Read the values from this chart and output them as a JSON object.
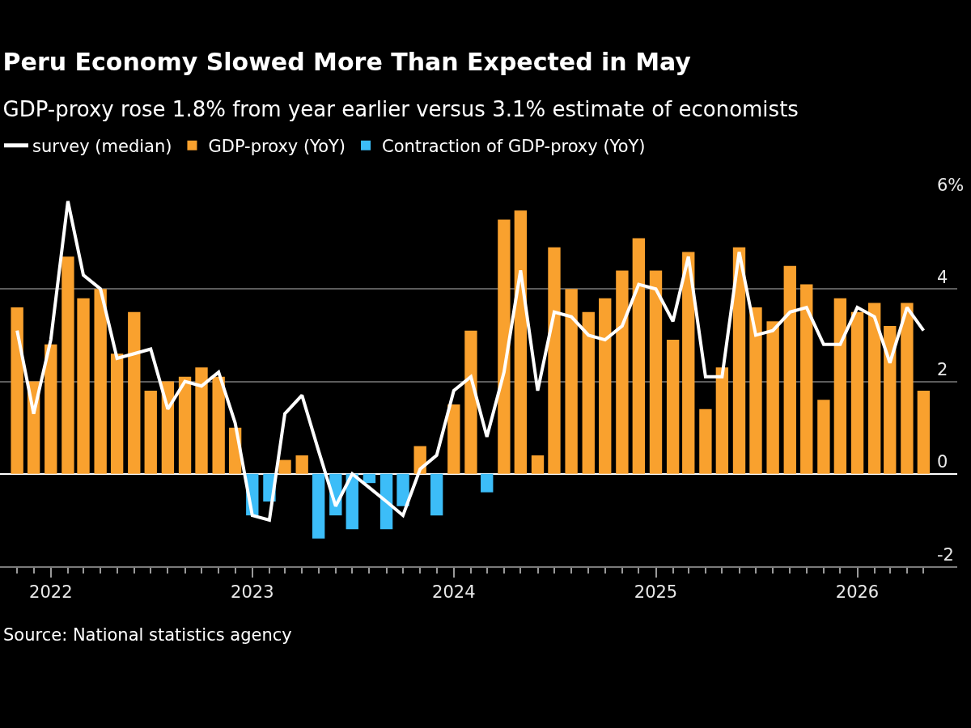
{
  "chart_data": {
    "type": "bar",
    "title": "Peru Economy Slowed More Than Expected in May",
    "subtitle": "GDP-proxy rose 1.8% from year earlier versus 3.1% estimate of economists",
    "x": [
      "2021-11",
      "2021-12",
      "2022-01",
      "2022-02",
      "2022-03",
      "2022-04",
      "2022-05",
      "2022-06",
      "2022-07",
      "2022-08",
      "2022-09",
      "2022-10",
      "2022-11",
      "2022-12",
      "2023-01",
      "2023-02",
      "2023-03",
      "2023-04",
      "2023-05",
      "2023-06",
      "2023-07",
      "2023-08",
      "2023-09",
      "2023-10",
      "2023-11",
      "2023-12",
      "2024-01",
      "2024-02",
      "2024-03",
      "2024-04",
      "2024-05",
      "2024-06",
      "2024-07",
      "2024-08",
      "2024-09",
      "2024-10",
      "2024-11",
      "2024-12",
      "2025-01",
      "2025-02",
      "2025-03",
      "2025-04",
      "2025-05",
      "2025-06",
      "2025-07",
      "2025-08",
      "2025-09",
      "2025-10",
      "2025-11",
      "2025-12",
      "2026-01",
      "2026-02",
      "2026-03",
      "2026-04",
      "2026-05"
    ],
    "series": [
      {
        "name": "survey (median)",
        "type": "line",
        "color": "#ffffff",
        "values": [
          3.1,
          1.3,
          2.9,
          5.9,
          4.3,
          4.0,
          2.5,
          2.6,
          2.7,
          1.4,
          2.0,
          1.9,
          2.2,
          1.1,
          -0.9,
          -1.0,
          1.3,
          1.7,
          0.5,
          -0.7,
          0.0,
          -0.3,
          -0.6,
          -0.9,
          0.1,
          0.4,
          1.8,
          2.1,
          0.8,
          2.2,
          4.4,
          1.8,
          3.5,
          3.4,
          3.0,
          2.9,
          3.2,
          4.1,
          4.0,
          3.3,
          4.7,
          2.1,
          2.1,
          4.8,
          3.0,
          3.1,
          3.5,
          3.6,
          2.8,
          2.8,
          3.6,
          3.4,
          2.4,
          3.6,
          3.1
        ]
      },
      {
        "name": "GDP-proxy (YoY)",
        "color": "#f9a12e",
        "values": [
          3.6,
          2.0,
          2.8,
          4.7,
          3.8,
          4.0,
          2.6,
          3.5,
          1.8,
          2.0,
          2.1,
          2.3,
          2.1,
          1.0,
          null,
          null,
          0.3,
          0.4,
          null,
          null,
          null,
          null,
          null,
          null,
          0.6,
          null,
          1.5,
          3.1,
          null,
          5.5,
          5.7,
          0.4,
          4.9,
          4.0,
          3.5,
          3.8,
          4.4,
          5.1,
          4.4,
          2.9,
          4.8,
          1.4,
          2.3,
          4.9,
          3.6,
          3.3,
          4.5,
          4.1,
          1.6,
          3.8,
          3.5,
          3.7,
          3.2,
          3.7,
          1.8
        ]
      },
      {
        "name": "Contraction of GDP-proxy (YoY)",
        "color": "#3cbdf8",
        "values": [
          null,
          null,
          null,
          null,
          null,
          null,
          null,
          null,
          null,
          null,
          null,
          null,
          null,
          null,
          -0.9,
          -0.6,
          null,
          null,
          -1.4,
          -0.9,
          -1.2,
          -0.2,
          -1.2,
          -0.7,
          null,
          -0.9,
          null,
          null,
          -0.4,
          null,
          null,
          null,
          null,
          null,
          null,
          null,
          null,
          null,
          null,
          null,
          null,
          null,
          null,
          null,
          null,
          null,
          null,
          null,
          null,
          null,
          null,
          null,
          null,
          null,
          null
        ]
      }
    ],
    "stacked": true,
    "xlim": [
      "2021-10",
      "2026-07"
    ],
    "xticks": [
      {
        "value": "2021-11",
        "label": null
      },
      {
        "value": "2021-12",
        "label": null
      },
      {
        "value": "2022-01",
        "label": "2022"
      },
      {
        "value": "2022-02",
        "label": null
      },
      {
        "value": "2022-03",
        "label": null
      },
      {
        "value": "2022-04",
        "label": null
      },
      {
        "value": "2022-05",
        "label": null
      },
      {
        "value": "2022-06",
        "label": null
      },
      {
        "value": "2022-07",
        "label": null
      },
      {
        "value": "2022-08",
        "label": null
      },
      {
        "value": "2022-09",
        "label": null
      },
      {
        "value": "2022-10",
        "label": null
      },
      {
        "value": "2022-11",
        "label": null
      },
      {
        "value": "2022-12",
        "label": null
      },
      {
        "value": "2023-01",
        "label": "2023"
      },
      {
        "value": "2023-02",
        "label": null
      },
      {
        "value": "2023-03",
        "label": null
      },
      {
        "value": "2023-04",
        "label": null
      },
      {
        "value": "2023-05",
        "label": null
      },
      {
        "value": "2023-06",
        "label": null
      },
      {
        "value": "2023-07",
        "label": null
      },
      {
        "value": "2023-08",
        "label": null
      },
      {
        "value": "2023-09",
        "label": null
      },
      {
        "value": "2023-10",
        "label": null
      },
      {
        "value": "2023-11",
        "label": null
      },
      {
        "value": "2023-12",
        "label": null
      },
      {
        "value": "2024-01",
        "label": "2024"
      },
      {
        "value": "2024-02",
        "label": null
      },
      {
        "value": "2024-03",
        "label": null
      },
      {
        "value": "2024-04",
        "label": null
      },
      {
        "value": "2024-05",
        "label": null
      },
      {
        "value": "2024-06",
        "label": null
      },
      {
        "value": "2024-07",
        "label": null
      },
      {
        "value": "2024-08",
        "label": null
      },
      {
        "value": "2024-09",
        "label": null
      },
      {
        "value": "2024-10",
        "label": null
      },
      {
        "value": "2024-11",
        "label": null
      },
      {
        "value": "2024-12",
        "label": null
      },
      {
        "value": "2025-01",
        "label": "2025"
      },
      {
        "value": "2025-02",
        "label": null
      },
      {
        "value": "2025-03",
        "label": null
      },
      {
        "value": "2025-04",
        "label": null
      },
      {
        "value": "2025-05",
        "label": null
      },
      {
        "value": "2025-06",
        "label": null
      },
      {
        "value": "2025-07",
        "label": null
      },
      {
        "value": "2025-08",
        "label": null
      },
      {
        "value": "2025-09",
        "label": null
      },
      {
        "value": "2025-10",
        "label": null
      },
      {
        "value": "2025-11",
        "label": null
      },
      {
        "value": "2025-12",
        "label": null
      },
      {
        "value": "2026-01",
        "label": "2026"
      },
      {
        "value": "2026-02",
        "label": null
      },
      {
        "value": "2026-03",
        "label": null
      },
      {
        "value": "2026-04",
        "label": null
      },
      {
        "value": "2026-05",
        "label": null
      }
    ],
    "ylim": [
      -2,
      6
    ],
    "yticks": [
      -2,
      0,
      2,
      4,
      {
        "value": 6,
        "label": "6%"
      }
    ],
    "grid": "y",
    "legend": "top left",
    "marker": "none",
    "line_style": "solid",
    "annotations": [
      "Source: National statistics agency"
    ]
  }
}
